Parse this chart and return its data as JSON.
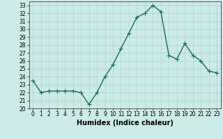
{
  "x": [
    0,
    1,
    2,
    3,
    4,
    5,
    6,
    7,
    8,
    9,
    10,
    11,
    12,
    13,
    14,
    15,
    16,
    17,
    18,
    19,
    20,
    21,
    22,
    23
  ],
  "y": [
    23.5,
    22.0,
    22.2,
    22.2,
    22.2,
    22.2,
    22.0,
    20.5,
    22.0,
    24.0,
    25.5,
    27.5,
    29.5,
    31.5,
    32.0,
    33.0,
    32.2,
    26.7,
    26.2,
    28.2,
    26.7,
    26.0,
    24.7,
    24.5
  ],
  "line_color": "#1a6b5a",
  "marker": "+",
  "markersize": 4,
  "linewidth": 1.0,
  "bg_color": "#cceae7",
  "grid_color": "#aad4d0",
  "xlabel": "Humidex (Indice chaleur)",
  "ylabel": "",
  "xlim": [
    -0.5,
    23.5
  ],
  "ylim": [
    20,
    33.5
  ],
  "yticks": [
    20,
    21,
    22,
    23,
    24,
    25,
    26,
    27,
    28,
    29,
    30,
    31,
    32,
    33
  ],
  "xticks": [
    0,
    1,
    2,
    3,
    4,
    5,
    6,
    7,
    8,
    9,
    10,
    11,
    12,
    13,
    14,
    15,
    16,
    17,
    18,
    19,
    20,
    21,
    22,
    23
  ],
  "xtick_labels": [
    "0",
    "1",
    "2",
    "3",
    "4",
    "5",
    "6",
    "7",
    "8",
    "9",
    "10",
    "11",
    "12",
    "13",
    "14",
    "15",
    "16",
    "17",
    "18",
    "19",
    "20",
    "21",
    "22",
    "23"
  ],
  "xlabel_fontsize": 7,
  "tick_fontsize": 5.5,
  "axis_color": "#555555",
  "grid_alpha": 1.0
}
